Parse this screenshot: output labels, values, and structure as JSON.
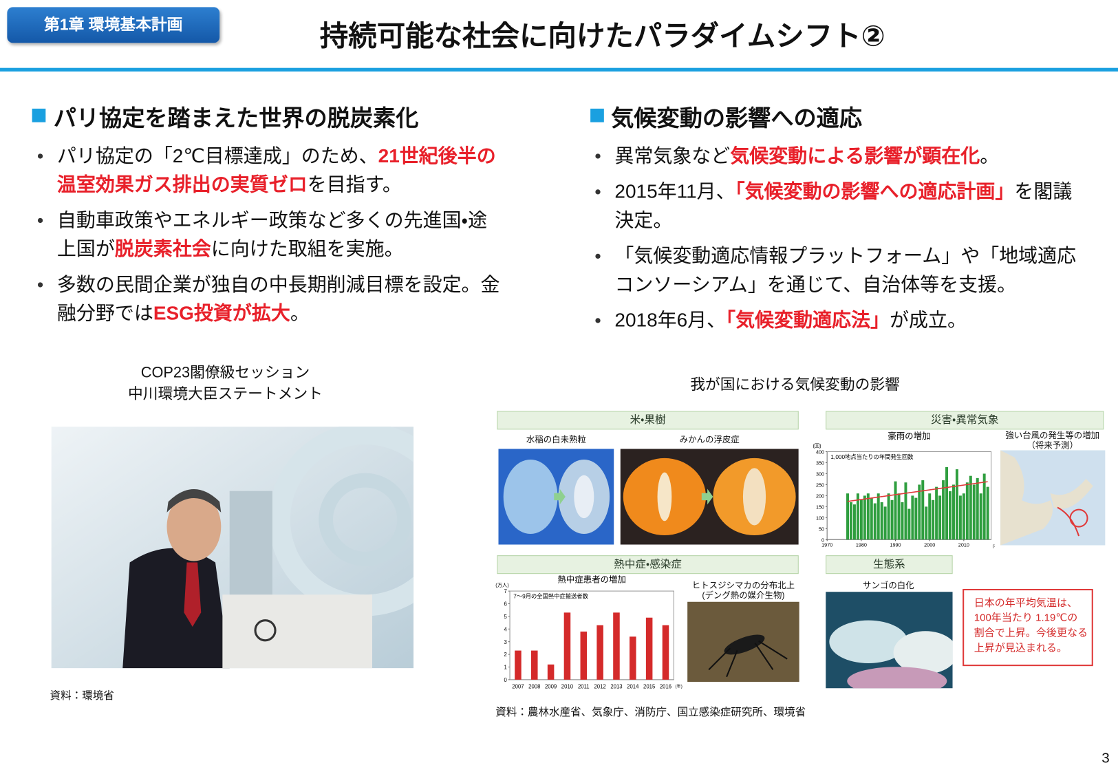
{
  "header": {
    "badge": "第1章 環境基本計画",
    "title": "持続可能な社会に向けたパラダイムシフト②"
  },
  "sections": [
    {
      "heading": "パリ協定を踏まえた世界の脱炭素化",
      "bullets": [
        [
          {
            "text": "パリ協定の「2℃目標達成」のため、"
          },
          {
            "text": "21世紀後半の温室効果ガス排出の実質ゼロ",
            "highlight": true
          },
          {
            "text": "を目指す。"
          }
        ],
        [
          {
            "text": "自動車政策やエネルギー政策など多くの先進国・途上国が"
          },
          {
            "text": "脱炭素社会",
            "highlight": true
          },
          {
            "text": "に向けた取組を実施。"
          }
        ],
        [
          {
            "text": "多数の民間企業が独自の中長期削減目標を設定。金融分野では"
          },
          {
            "text": "ESG投資が拡大",
            "highlight": true
          },
          {
            "text": "。"
          }
        ]
      ]
    },
    {
      "heading": "気候変動の影響への適応",
      "bullets": [
        [
          {
            "text": "異常気象など"
          },
          {
            "text": "気候変動による影響が顕在化",
            "highlight": true
          },
          {
            "text": "。"
          }
        ],
        [
          {
            "text": "2015年11月、"
          },
          {
            "text": "「気候変動の影響への適応計画」",
            "highlight": true
          },
          {
            "text": "を閣議決定。"
          }
        ],
        [
          {
            "text": "「気候変動適応情報プラットフォーム」や「地域適応コンソーシアム」を通じて、自治体等を支援。"
          }
        ],
        [
          {
            "text": "2018年6月、"
          },
          {
            "text": "「気候変動適応法」",
            "highlight": true
          },
          {
            "text": "が成立。"
          }
        ]
      ]
    }
  ],
  "left_figure": {
    "caption": [
      "COP23閣僚級セッション",
      "中川環境大臣ステートメント"
    ],
    "source": "資料：環境省"
  },
  "right_figure": {
    "title": "我が国における気候変動の影響",
    "panels": {
      "rice_fruit": "米・果樹",
      "disaster": "災害・異常気象",
      "health": "熱中症・感染症",
      "ecosystem": "生態系"
    },
    "rice_label": "水稲の白未熟粒",
    "mikan_label": "みかんの浮皮症",
    "typhoon_label": [
      "強い台風の発生等の増加",
      "（将来予測）"
    ],
    "mosquito_label": [
      "ヒトスジシマカの分布北上",
      "(デング熱の媒介生物)"
    ],
    "coral_label": "サンゴの白化",
    "note": [
      "日本の年平均気温は、",
      "100年当たり 1.19℃の",
      "割合で上昇。今後更なる",
      "上昇が見込まれる。"
    ],
    "rain_chart": {
      "type": "bar",
      "title": "豪雨の増加",
      "y_unit": "(回)",
      "x_unit": "(年)",
      "legend": "1,000地点当たりの年間発生回数",
      "x": [
        1976,
        1977,
        1978,
        1979,
        1980,
        1981,
        1982,
        1983,
        1984,
        1985,
        1986,
        1987,
        1988,
        1989,
        1990,
        1991,
        1992,
        1993,
        1994,
        1995,
        1996,
        1997,
        1998,
        1999,
        2000,
        2001,
        2002,
        2003,
        2004,
        2005,
        2006,
        2007,
        2008,
        2009,
        2010,
        2011,
        2012,
        2013,
        2014,
        2015,
        2016,
        2017
      ],
      "values": [
        210,
        170,
        160,
        210,
        180,
        200,
        210,
        190,
        165,
        210,
        170,
        150,
        210,
        180,
        265,
        210,
        170,
        260,
        140,
        200,
        190,
        250,
        270,
        150,
        210,
        180,
        240,
        200,
        270,
        330,
        220,
        250,
        320,
        200,
        210,
        260,
        290,
        250,
        280,
        210,
        300,
        240
      ],
      "xlim": [
        1970,
        2018
      ],
      "xticks": [
        1970,
        1980,
        1990,
        2000,
        2010
      ],
      "ylim": [
        0,
        400
      ],
      "yticks": [
        0,
        50,
        100,
        150,
        200,
        250,
        300,
        350,
        400
      ],
      "color": "#2f9e3f",
      "trend_color": "#e03a3a"
    },
    "heat_chart": {
      "type": "bar",
      "title": "熱中症患者の増加",
      "y_unit": "(万人)",
      "x_unit": "(年)",
      "legend": "7～9月の全国熱中症搬送者数",
      "categories": [
        "2007",
        "2008",
        "2009",
        "2010",
        "2011",
        "2012",
        "2013",
        "2014",
        "2015",
        "2016"
      ],
      "values": [
        2.3,
        2.3,
        1.2,
        5.3,
        3.8,
        4.3,
        5.3,
        3.4,
        4.9,
        4.3
      ],
      "ylim": [
        0,
        7
      ],
      "yticks": [
        0,
        1,
        2,
        3,
        4,
        5,
        6,
        7
      ],
      "color": "#d42a2a"
    },
    "source": "資料：農林水産省、気象庁、消防庁、国立感染症研究所、環境省"
  },
  "page_number": "3"
}
